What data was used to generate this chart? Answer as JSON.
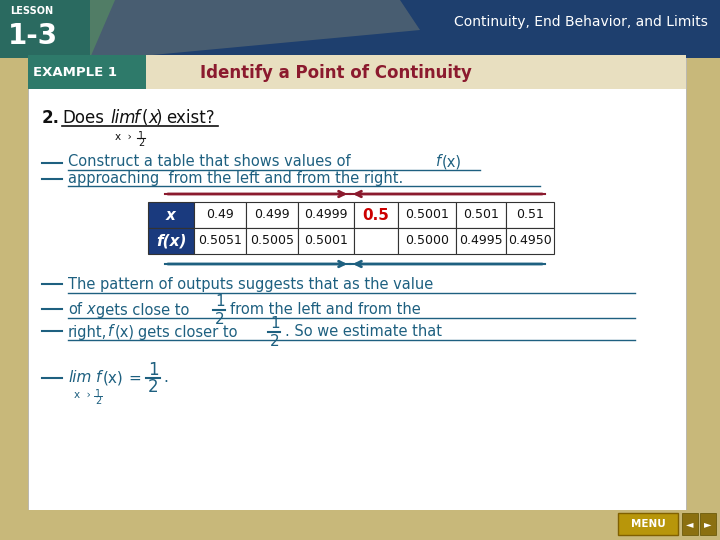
{
  "bg_color": "#c8b87a",
  "slide_bg": "#ffffff",
  "top_bar_color": "#1e3f6e",
  "lesson_text_1": "LESSON",
  "lesson_text_2": "1-3",
  "header_right": "Continuity, End Behavior, and Limits",
  "example_box_color": "#2e7a6a",
  "example_label": "EXAMPLE 1",
  "example_title": "Identify a Point of Continuity",
  "example_title_color": "#8b1a2e",
  "main_text_color": "#1e6080",
  "table_header_color": "#1a3a7e",
  "table_border_color": "#333333",
  "table_x_row": [
    "x",
    "0.49",
    "0.499",
    "0.4999",
    "0.5",
    "0.5001",
    "0.501",
    "0.51"
  ],
  "table_fx_row": [
    "f(x)",
    "0.5051",
    "0.5005",
    "0.5001",
    "",
    "0.5000",
    "0.4995",
    "0.4950"
  ],
  "highlight_col": 4,
  "highlight_color": "#cc0000",
  "arrow_color_top": "#8b1a2e",
  "arrow_color_bot": "#1e6080",
  "menu_color": "#b8960a",
  "nav_color": "#8b7010"
}
